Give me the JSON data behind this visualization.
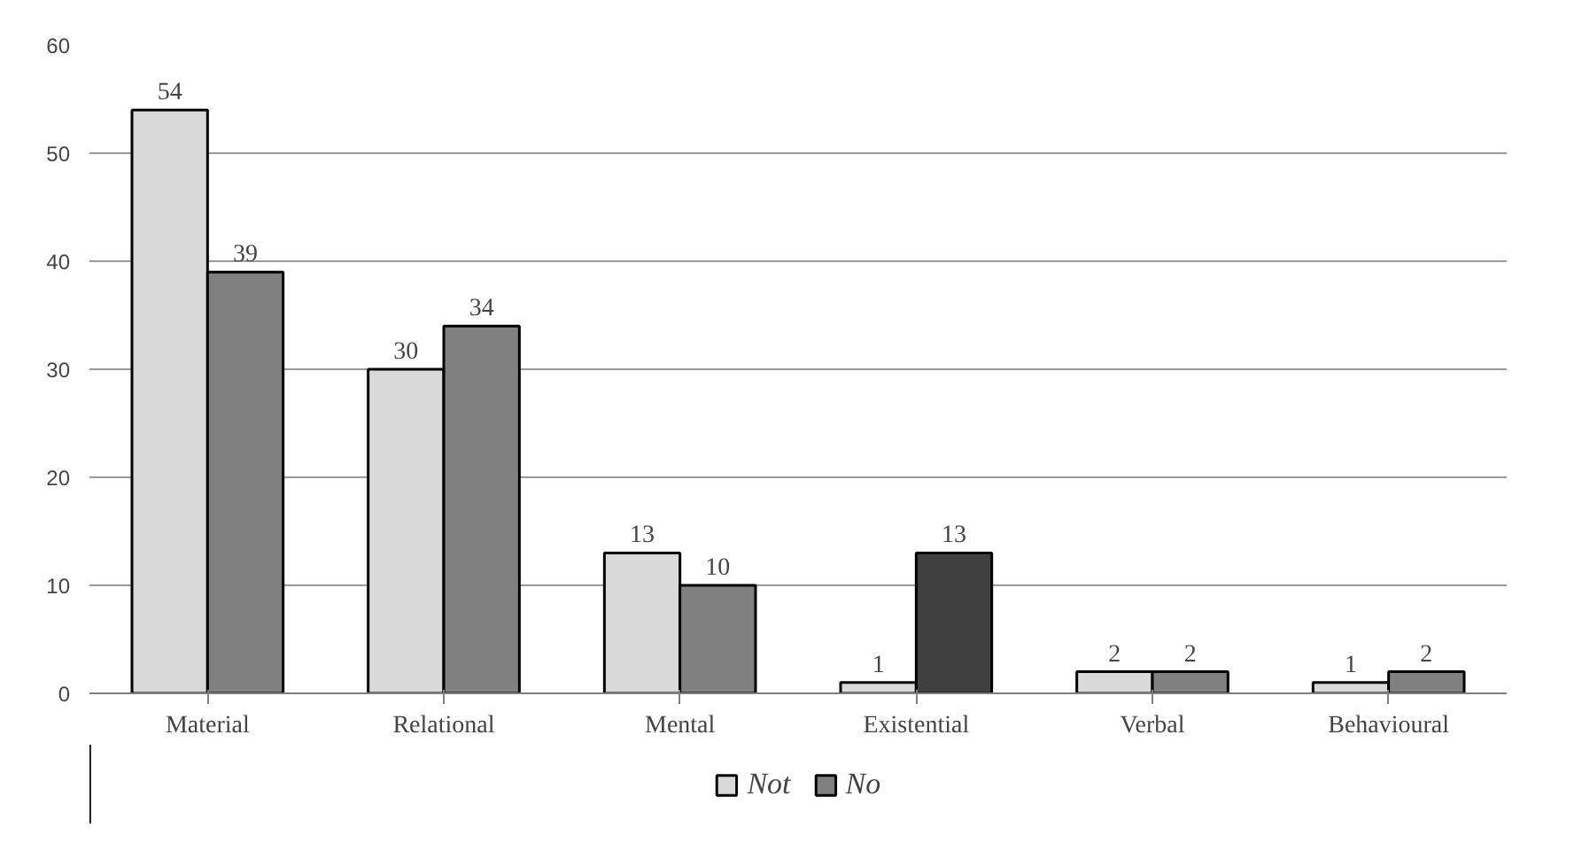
{
  "chart_data": {
    "type": "bar",
    "categories": [
      "Material",
      "Relational",
      "Mental",
      "Existential",
      "Verbal",
      "Behavioural"
    ],
    "series": [
      {
        "name": "Not",
        "color": "#d9d9d9",
        "values": [
          54,
          30,
          13,
          1,
          2,
          1
        ]
      },
      {
        "name": "No",
        "color": "#808080",
        "colors": [
          "#808080",
          "#808080",
          "#808080",
          "#404040",
          "#808080",
          "#808080"
        ],
        "values": [
          39,
          34,
          10,
          13,
          2,
          2
        ]
      }
    ],
    "ylim": [
      0,
      60
    ],
    "yticks": [
      0,
      10,
      20,
      30,
      40,
      50,
      60
    ],
    "grid": "y",
    "legend": "bottom",
    "data_labels": true
  }
}
